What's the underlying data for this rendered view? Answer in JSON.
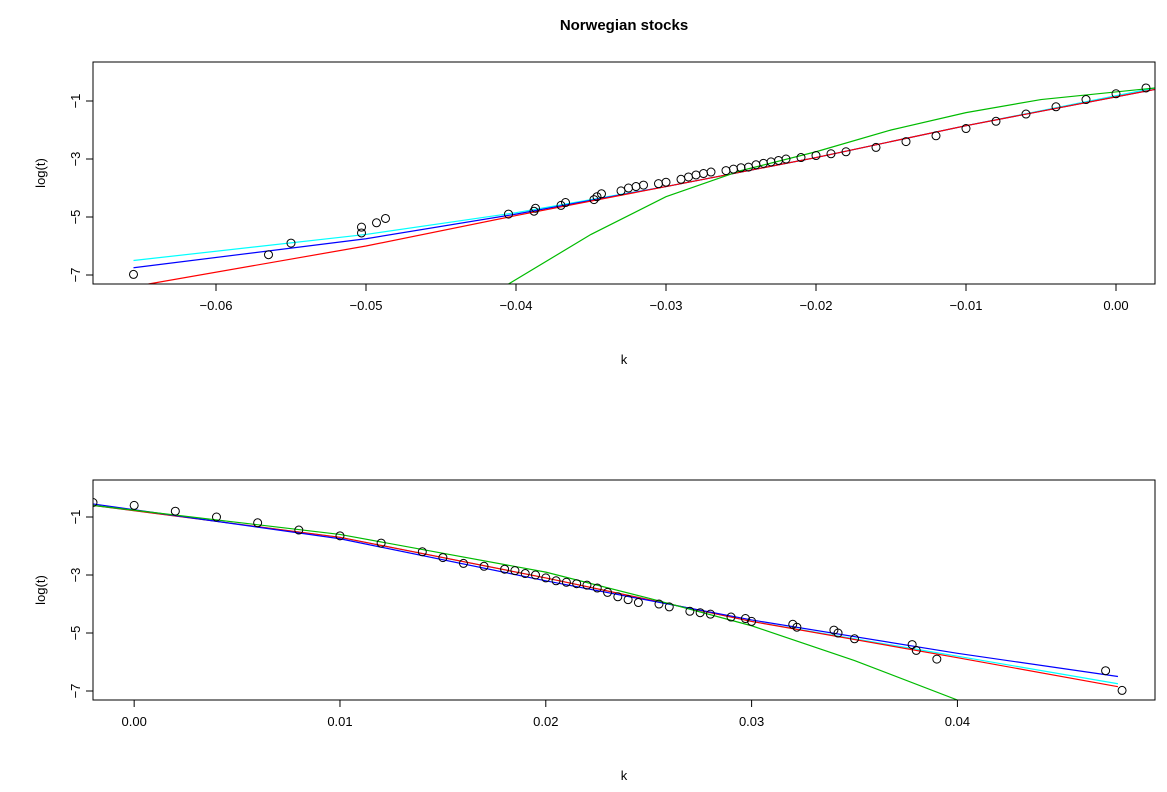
{
  "chart_data": [
    {
      "type": "scatter",
      "title": "Norwegian stocks",
      "xlabel": "k",
      "ylabel": "log(t)",
      "xlim": [
        -0.0682,
        0.0026
      ],
      "ylim": [
        -7.31,
        0.345
      ],
      "xticks": [
        {
          "value": -0.06,
          "label": "−0.06"
        },
        {
          "value": -0.05,
          "label": "−0.05"
        },
        {
          "value": -0.04,
          "label": "−0.04"
        },
        {
          "value": -0.03,
          "label": "−0.03"
        },
        {
          "value": -0.02,
          "label": "−0.02"
        },
        {
          "value": -0.01,
          "label": "−0.01"
        },
        {
          "value": 0,
          "label": "0.00"
        }
      ],
      "yticks": [
        {
          "value": -1,
          "label": "−1"
        },
        {
          "value": -3,
          "label": "−3"
        },
        {
          "value": -5,
          "label": "−5"
        },
        {
          "value": -7,
          "label": "−7"
        }
      ],
      "marker_color": "#000000",
      "x": [
        -0.0655,
        -0.0565,
        -0.055,
        -0.0503,
        -0.0503,
        -0.0493,
        -0.0487,
        -0.0405,
        -0.0388,
        -0.0387,
        -0.037,
        -0.0367,
        -0.0348,
        -0.0346,
        -0.0343,
        -0.033,
        -0.0325,
        -0.032,
        -0.0315,
        -0.0305,
        -0.03,
        -0.029,
        -0.0285,
        -0.028,
        -0.0275,
        -0.027,
        -0.026,
        -0.0255,
        -0.025,
        -0.0245,
        -0.024,
        -0.0235,
        -0.023,
        -0.0225,
        -0.022,
        -0.021,
        -0.02,
        -0.019,
        -0.018,
        -0.016,
        -0.014,
        -0.012,
        -0.01,
        -0.008,
        -0.006,
        -0.004,
        -0.002,
        0,
        0.002
      ],
      "values": [
        -6.98,
        -6.3,
        -5.9,
        -5.55,
        -5.35,
        -5.2,
        -5.05,
        -4.9,
        -4.8,
        -4.7,
        -4.6,
        -4.5,
        -4.4,
        -4.3,
        -4.2,
        -4.1,
        -4.0,
        -3.95,
        -3.9,
        -3.85,
        -3.8,
        -3.7,
        -3.62,
        -3.55,
        -3.5,
        -3.45,
        -3.4,
        -3.35,
        -3.3,
        -3.28,
        -3.2,
        -3.15,
        -3.1,
        -3.05,
        -3.0,
        -2.95,
        -2.88,
        -2.82,
        -2.75,
        -2.6,
        -2.4,
        -2.2,
        -1.95,
        -1.7,
        -1.45,
        -1.2,
        -0.95,
        -0.75,
        -0.55
      ],
      "lines": [
        {
          "color": "#00ffff",
          "x": [
            -0.0655,
            -0.05,
            -0.04,
            -0.03,
            -0.02,
            -0.01,
            0.0026
          ],
          "values": [
            -6.5,
            -5.6,
            -4.85,
            -3.95,
            -2.95,
            -1.85,
            -0.55
          ]
        },
        {
          "color": "#0000ff",
          "x": [
            -0.0655,
            -0.05,
            -0.04,
            -0.03,
            -0.02,
            -0.01,
            0.0026
          ],
          "values": [
            -6.75,
            -5.75,
            -4.9,
            -3.95,
            -2.95,
            -1.85,
            -0.6
          ]
        },
        {
          "color": "#ff0000",
          "x": [
            -0.0645,
            -0.05,
            -0.04,
            -0.03,
            -0.02,
            -0.01,
            0.0026
          ],
          "values": [
            -7.31,
            -6.0,
            -4.95,
            -3.95,
            -2.95,
            -1.85,
            -0.6
          ]
        },
        {
          "color": "#00bb00",
          "x": [
            -0.0405,
            -0.035,
            -0.03,
            -0.025,
            -0.02,
            -0.015,
            -0.01,
            -0.005,
            0.0026
          ],
          "values": [
            -7.31,
            -5.6,
            -4.3,
            -3.4,
            -2.75,
            -2.0,
            -1.4,
            -0.95,
            -0.55
          ]
        }
      ]
    },
    {
      "type": "scatter",
      "xlabel": "k",
      "ylabel": "log(t)",
      "xlim": [
        -0.002,
        0.0496
      ],
      "ylim": [
        -7.31,
        0.276
      ],
      "xticks": [
        {
          "value": 0,
          "label": "0.00"
        },
        {
          "value": 0.01,
          "label": "0.01"
        },
        {
          "value": 0.02,
          "label": "0.02"
        },
        {
          "value": 0.03,
          "label": "0.03"
        },
        {
          "value": 0.04,
          "label": "0.04"
        }
      ],
      "yticks": [
        {
          "value": -1,
          "label": "−1"
        },
        {
          "value": -3,
          "label": "−3"
        },
        {
          "value": -5,
          "label": "−5"
        },
        {
          "value": -7,
          "label": "−7"
        }
      ],
      "marker_color": "#000000",
      "x": [
        -0.002,
        0,
        0.002,
        0.004,
        0.006,
        0.008,
        0.01,
        0.012,
        0.014,
        0.015,
        0.016,
        0.017,
        0.018,
        0.0185,
        0.019,
        0.0195,
        0.02,
        0.0205,
        0.021,
        0.0215,
        0.022,
        0.0225,
        0.023,
        0.0235,
        0.024,
        0.0245,
        0.0255,
        0.026,
        0.027,
        0.0275,
        0.028,
        0.029,
        0.0297,
        0.03,
        0.032,
        0.0322,
        0.034,
        0.0342,
        0.035,
        0.0378,
        0.038,
        0.039,
        0.0472,
        0.048
      ],
      "values": [
        -0.5,
        -0.6,
        -0.8,
        -1.0,
        -1.2,
        -1.45,
        -1.65,
        -1.9,
        -2.2,
        -2.4,
        -2.6,
        -2.7,
        -2.8,
        -2.85,
        -2.95,
        -3.0,
        -3.1,
        -3.2,
        -3.25,
        -3.3,
        -3.35,
        -3.45,
        -3.6,
        -3.75,
        -3.85,
        -3.95,
        -4.0,
        -4.1,
        -4.25,
        -4.3,
        -4.35,
        -4.45,
        -4.5,
        -4.6,
        -4.7,
        -4.8,
        -4.9,
        -5.0,
        -5.2,
        -5.4,
        -5.6,
        -5.9,
        -6.3,
        -6.98
      ],
      "lines": [
        {
          "color": "#00ffff",
          "x": [
            -0.002,
            0.01,
            0.02,
            0.03,
            0.04,
            0.0478
          ],
          "values": [
            -0.6,
            -1.7,
            -3.1,
            -4.6,
            -5.8,
            -6.75
          ]
        },
        {
          "color": "#ff0000",
          "x": [
            -0.002,
            0.01,
            0.02,
            0.03,
            0.04,
            0.0478
          ],
          "values": [
            -0.6,
            -1.7,
            -3.1,
            -4.6,
            -5.85,
            -6.85
          ]
        },
        {
          "color": "#0000ff",
          "x": [
            -0.002,
            0.01,
            0.02,
            0.03,
            0.04,
            0.0478
          ],
          "values": [
            -0.55,
            -1.75,
            -3.2,
            -4.55,
            -5.7,
            -6.5
          ]
        },
        {
          "color": "#00bb00",
          "x": [
            -0.002,
            0.01,
            0.02,
            0.025,
            0.03,
            0.035,
            0.04
          ],
          "values": [
            -0.6,
            -1.6,
            -2.9,
            -3.8,
            -4.75,
            -5.95,
            -7.31
          ]
        }
      ]
    }
  ]
}
